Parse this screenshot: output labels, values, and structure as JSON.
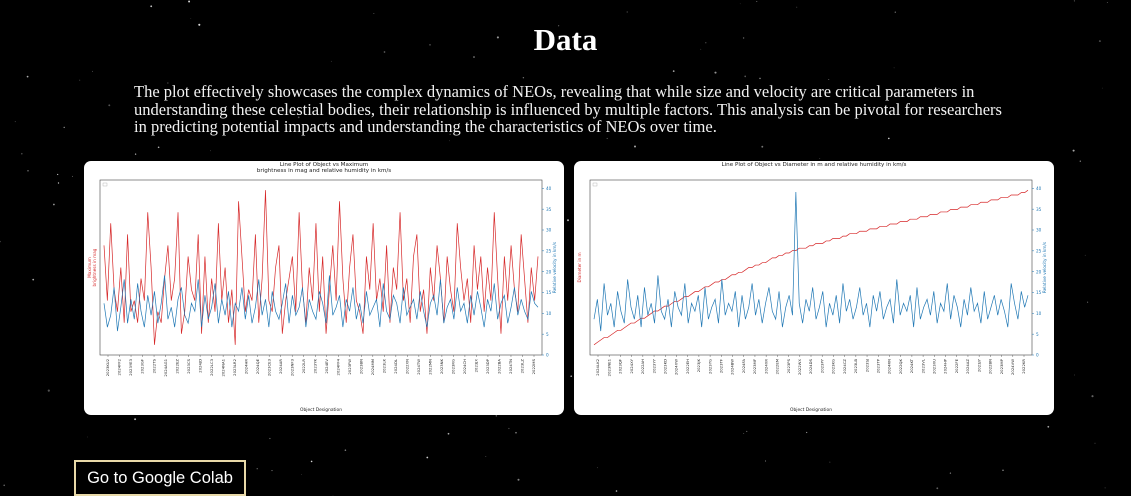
{
  "page": {
    "title": "Data",
    "description": "The plot effectively showcases the complex dynamics of NEOs, revealing that while size and velocity are critical parameters in understanding these celestial bodies, their relationship is influenced by multiple factors. This analysis can be pivotal for researchers in predicting potential impacts and understanding the characteristics of NEOs over time.",
    "colab_button": "Go to Google Colab"
  },
  "chart_data": [
    {
      "type": "line",
      "title": "Line Plot of Object vs Maximum\nbrightness in mag and relative humidity in km/s",
      "xlabel": "Object Designation",
      "ylabel_left": "Maximum\nbrightness in mag",
      "ylabel_right": "Relative velocity in km/s",
      "y2lim": [
        0,
        42
      ],
      "y2ticks": [
        0,
        5,
        10,
        15,
        20,
        25,
        30,
        35,
        40
      ],
      "xticks": [
        "2023KU2",
        "2024FF2",
        "2023YE3",
        "2023GF",
        "2022TS",
        "2024AG1",
        "2022EZ",
        "2023CS",
        "2024JD",
        "2022LC3",
        "2024NA1",
        "2023LR2",
        "2024HR",
        "2024QE",
        "2023CE3",
        "2024AR",
        "2023NF3",
        "2022LR",
        "2023YK",
        "2024EV",
        "2024FF4",
        "2023FW",
        "2023BN",
        "2024MM",
        "2023LK",
        "2024DL",
        "2022XN",
        "2024TW",
        "2022MN",
        "2023NK",
        "2023RG",
        "2024CH",
        "2023JX",
        "2023DP",
        "2022BA",
        "2024TN",
        "2023LZ",
        "2022MS"
      ],
      "series": [
        {
          "name": "",
          "color": "#d62728",
          "values": [
            19,
            14,
            21,
            15,
            13,
            17,
            12,
            20,
            13,
            14,
            12,
            16,
            14,
            22,
            17,
            10,
            13,
            12,
            16,
            19,
            14,
            16,
            22,
            11,
            13,
            18,
            15,
            14,
            20,
            11,
            18,
            12,
            16,
            13,
            21,
            14,
            17,
            12,
            15,
            10,
            23,
            18,
            13,
            15,
            14,
            20,
            12,
            16,
            24,
            14,
            13,
            17,
            19,
            11,
            14,
            16,
            18,
            13,
            22,
            15,
            12,
            17,
            14,
            21,
            13,
            18,
            11,
            15,
            19,
            14,
            23,
            16,
            12,
            17,
            20,
            14,
            13,
            11,
            18,
            15,
            21,
            14,
            16,
            13,
            19,
            12,
            17,
            15,
            22,
            14,
            16,
            12,
            18,
            20,
            13,
            15,
            11,
            17,
            14,
            19,
            16,
            12,
            18,
            15,
            13,
            21,
            17,
            14,
            16,
            12,
            19,
            15,
            18,
            13,
            17,
            14,
            22,
            16,
            11,
            18,
            14,
            19,
            15,
            13,
            20,
            16,
            12,
            17,
            14,
            18
          ]
        },
        {
          "name": "",
          "color": "#1f77b4",
          "values": [
            12,
            6,
            9,
            16,
            5,
            11,
            18,
            7,
            13,
            8,
            17,
            10,
            6,
            14,
            9,
            15,
            7,
            12,
            19,
            8,
            11,
            6,
            13,
            16,
            9,
            7,
            12,
            10,
            18,
            6,
            14,
            8,
            11,
            17,
            7,
            13,
            9,
            15,
            6,
            12,
            10,
            16,
            8,
            14,
            7,
            11,
            18,
            9,
            13,
            6,
            15,
            10,
            8,
            12,
            17,
            7,
            14,
            9,
            11,
            16,
            6,
            13,
            10,
            8,
            15,
            12,
            7,
            19,
            9,
            11,
            14,
            6,
            13,
            10,
            16,
            8,
            12,
            7,
            15,
            9,
            11,
            13,
            6,
            17,
            10,
            8,
            14,
            12,
            7,
            16,
            9,
            11,
            13,
            8,
            15,
            10,
            6,
            12,
            14,
            9,
            18,
            7,
            11,
            13,
            8,
            16,
            10,
            12,
            7,
            14,
            9,
            15,
            11,
            6,
            13,
            10,
            17,
            8,
            12,
            14,
            7,
            11,
            16,
            9,
            13,
            10,
            8,
            15,
            12,
            11
          ]
        }
      ]
    },
    {
      "type": "line",
      "title": "Line Plot of Object vs Diameter in m and relative humidity in km/s",
      "xlabel": "Object Designation",
      "ylabel_left": "Diameter in m",
      "ylabel_right": "Relative velocity in km/s",
      "y2lim": [
        0,
        42
      ],
      "y2ticks": [
        0,
        5,
        10,
        15,
        20,
        25,
        30,
        35,
        40
      ],
      "xticks": [
        "2024LK2",
        "2023NE1",
        "2023QF",
        "2024XY",
        "2022AH",
        "2023YY",
        "2023KD",
        "2024XW",
        "2022EH",
        "2023JK",
        "2023YG",
        "2023TF",
        "2024BW",
        "2024FA",
        "2023MF",
        "2024XR",
        "2022EM",
        "2023PS",
        "2022WX",
        "2024DS",
        "2023PY",
        "2023KG",
        "2024CZ",
        "2023LB",
        "2023SJ",
        "2023TP",
        "2024RN",
        "2022QK",
        "2024KT",
        "2023VL",
        "2023XU",
        "2024HP",
        "2022FE",
        "2024AZ",
        "2023JY",
        "2022BN",
        "2023MP",
        "2024VW",
        "2022KR"
      ],
      "series": [
        {
          "name": "",
          "color": "#d62728",
          "values": [
            0,
            1,
            2,
            3,
            3,
            4,
            5,
            6,
            6,
            7,
            8,
            9,
            9,
            10,
            11,
            11,
            12,
            13,
            14,
            14,
            15,
            16,
            16,
            17,
            18,
            18,
            19,
            20,
            20,
            21,
            22,
            22,
            23,
            24,
            24,
            25,
            26,
            26,
            27,
            27,
            28,
            29,
            29,
            30,
            30,
            31,
            32,
            32,
            33,
            33,
            34,
            34,
            35,
            36,
            36,
            37,
            37,
            38,
            38,
            39,
            39,
            40,
            40,
            40,
            41,
            41,
            42,
            42,
            42,
            43,
            43,
            44,
            44,
            44,
            45,
            45,
            46,
            46,
            46,
            47,
            47,
            47,
            48,
            48,
            48,
            49,
            49,
            49,
            50,
            50,
            50,
            51,
            51,
            51,
            52,
            52,
            52,
            53,
            53,
            53,
            54,
            54,
            54,
            55,
            55,
            55,
            56,
            56,
            56,
            57,
            57,
            57,
            58,
            58,
            58,
            59,
            59,
            59,
            60,
            60,
            60,
            61,
            61,
            61,
            62,
            62,
            62,
            63,
            63,
            64
          ]
        },
        {
          "name": "",
          "color": "#1f77b4",
          "values": [
            8,
            13,
            5,
            17,
            9,
            12,
            6,
            15,
            10,
            7,
            18,
            11,
            8,
            14,
            6,
            16,
            9,
            12,
            7,
            19,
            10,
            8,
            13,
            6,
            15,
            11,
            9,
            17,
            7,
            12,
            10,
            14,
            6,
            16,
            8,
            11,
            13,
            7,
            18,
            9,
            12,
            10,
            15,
            6,
            14,
            8,
            11,
            17,
            9,
            13,
            7,
            12,
            16,
            10,
            8,
            15,
            6,
            11,
            14,
            9,
            40,
            12,
            7,
            13,
            10,
            16,
            8,
            11,
            15,
            6,
            12,
            9,
            14,
            7,
            17,
            10,
            13,
            8,
            11,
            16,
            9,
            12,
            6,
            14,
            10,
            15,
            8,
            11,
            13,
            7,
            18,
            9,
            12,
            10,
            14,
            6,
            16,
            8,
            11,
            13,
            9,
            15,
            7,
            12,
            10,
            17,
            8,
            14,
            11,
            6,
            13,
            9,
            16,
            10,
            12,
            7,
            15,
            8,
            11,
            14,
            9,
            13,
            10,
            6,
            17,
            12,
            8,
            15,
            11,
            14
          ]
        }
      ]
    }
  ]
}
